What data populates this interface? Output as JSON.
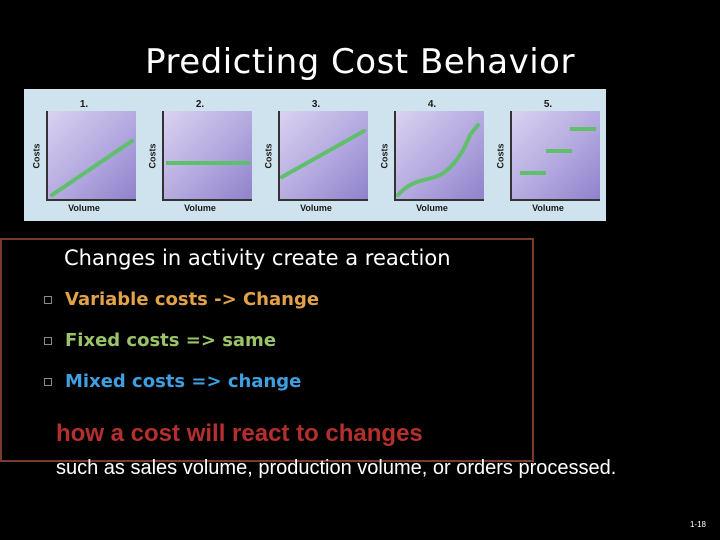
{
  "slide": {
    "title": "Predicting Cost Behavior",
    "lead": "Changes in activity create a reaction",
    "bullets": [
      {
        "text": "Variable costs -> Change",
        "color": "#e2a24a"
      },
      {
        "text": "Fixed costs => same",
        "color": "#9bc46a"
      },
      {
        "text": "Mixed costs => change",
        "color": "#3f9fe0"
      }
    ],
    "emphasis": "how a cost will react to changes",
    "body": "such as sales volume, production volume, or orders processed.",
    "slide_number": "1-18"
  },
  "figure": {
    "panels": [
      {
        "number": "1.",
        "y_label": "Costs",
        "x_label": "Volume",
        "shape": "rising-line"
      },
      {
        "number": "2.",
        "y_label": "Costs",
        "x_label": "Volume",
        "shape": "flat-line"
      },
      {
        "number": "3.",
        "y_label": "Costs",
        "x_label": "Volume",
        "shape": "rising-line-with-intercept"
      },
      {
        "number": "4.",
        "y_label": "Costs",
        "x_label": "Volume",
        "shape": "curved-rising-line"
      },
      {
        "number": "5.",
        "y_label": "Costs",
        "x_label": "Volume",
        "shape": "step-segments"
      }
    ],
    "line_color": "#5fbf6a"
  }
}
